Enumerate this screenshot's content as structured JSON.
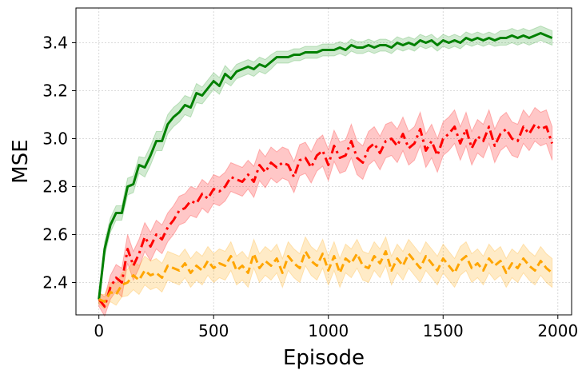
{
  "chart_data": {
    "type": "line",
    "title": "",
    "xlabel": "Episode",
    "ylabel": "MSE",
    "xlim": [
      -100,
      2060
    ],
    "ylim": [
      2.265,
      3.545
    ],
    "x_ticks": [
      0,
      500,
      1000,
      1500,
      2000
    ],
    "y_ticks": [
      2.4,
      2.6,
      2.8,
      3.0,
      3.2,
      3.4
    ],
    "x_tick_labels": [
      "0",
      "500",
      "1000",
      "1500",
      "2000"
    ],
    "y_tick_labels": [
      "2.4",
      "2.6",
      "2.8",
      "3.0",
      "3.2",
      "3.4"
    ],
    "grid": true,
    "legend": "none",
    "series": [
      {
        "color": "#008000",
        "fill": "#2ca02c",
        "linestyle": "solid",
        "x": [
          0,
          25,
          50,
          75,
          100,
          125,
          150,
          175,
          200,
          225,
          250,
          275,
          300,
          325,
          350,
          375,
          400,
          425,
          450,
          475,
          500,
          525,
          550,
          575,
          600,
          625,
          650,
          675,
          700,
          725,
          750,
          775,
          800,
          825,
          850,
          875,
          900,
          925,
          950,
          975,
          1000,
          1025,
          1050,
          1075,
          1100,
          1125,
          1150,
          1175,
          1200,
          1225,
          1250,
          1275,
          1300,
          1325,
          1350,
          1375,
          1400,
          1425,
          1450,
          1475,
          1500,
          1525,
          1550,
          1575,
          1600,
          1625,
          1650,
          1675,
          1700,
          1725,
          1750,
          1775,
          1800,
          1825,
          1850,
          1875,
          1900,
          1925,
          1950,
          1975
        ],
        "mean": [
          2.33,
          2.54,
          2.64,
          2.69,
          2.69,
          2.8,
          2.81,
          2.89,
          2.88,
          2.93,
          2.99,
          2.99,
          3.06,
          3.09,
          3.11,
          3.14,
          3.13,
          3.19,
          3.18,
          3.21,
          3.24,
          3.22,
          3.27,
          3.25,
          3.28,
          3.29,
          3.3,
          3.29,
          3.31,
          3.3,
          3.32,
          3.34,
          3.34,
          3.34,
          3.35,
          3.35,
          3.36,
          3.36,
          3.36,
          3.37,
          3.37,
          3.37,
          3.38,
          3.37,
          3.39,
          3.38,
          3.38,
          3.39,
          3.38,
          3.39,
          3.39,
          3.38,
          3.4,
          3.39,
          3.4,
          3.39,
          3.41,
          3.4,
          3.41,
          3.39,
          3.41,
          3.4,
          3.41,
          3.4,
          3.42,
          3.41,
          3.42,
          3.41,
          3.42,
          3.41,
          3.42,
          3.42,
          3.43,
          3.42,
          3.43,
          3.42,
          3.43,
          3.44,
          3.43,
          3.42
        ],
        "band": [
          0.02,
          0.03,
          0.03,
          0.03,
          0.03,
          0.035,
          0.035,
          0.035,
          0.04,
          0.04,
          0.04,
          0.04,
          0.04,
          0.04,
          0.04,
          0.04,
          0.04,
          0.04,
          0.035,
          0.035,
          0.035,
          0.035,
          0.035,
          0.03,
          0.03,
          0.03,
          0.03,
          0.03,
          0.03,
          0.03,
          0.03,
          0.025,
          0.025,
          0.025,
          0.025,
          0.025,
          0.025,
          0.025,
          0.025,
          0.025,
          0.025,
          0.025,
          0.025,
          0.025,
          0.025,
          0.025,
          0.025,
          0.025,
          0.025,
          0.025,
          0.025,
          0.025,
          0.025,
          0.025,
          0.025,
          0.025,
          0.025,
          0.025,
          0.025,
          0.025,
          0.025,
          0.025,
          0.025,
          0.025,
          0.025,
          0.025,
          0.025,
          0.025,
          0.025,
          0.025,
          0.03,
          0.03,
          0.03,
          0.03,
          0.03,
          0.03,
          0.03,
          0.03,
          0.03,
          0.03
        ]
      },
      {
        "color": "#ff0000",
        "fill": "#ff0000",
        "linestyle": "dashdot",
        "x": [
          0,
          25,
          50,
          75,
          100,
          125,
          150,
          175,
          200,
          225,
          250,
          275,
          300,
          325,
          350,
          375,
          400,
          425,
          450,
          475,
          500,
          525,
          550,
          575,
          600,
          625,
          650,
          675,
          700,
          725,
          750,
          775,
          800,
          825,
          850,
          875,
          900,
          925,
          950,
          975,
          1000,
          1025,
          1050,
          1075,
          1100,
          1125,
          1150,
          1175,
          1200,
          1225,
          1250,
          1275,
          1300,
          1325,
          1350,
          1375,
          1400,
          1425,
          1450,
          1475,
          1500,
          1525,
          1550,
          1575,
          1600,
          1625,
          1650,
          1675,
          1700,
          1725,
          1750,
          1775,
          1800,
          1825,
          1850,
          1875,
          1900,
          1925,
          1950,
          1975
        ],
        "mean": [
          2.33,
          2.3,
          2.38,
          2.42,
          2.4,
          2.54,
          2.47,
          2.52,
          2.59,
          2.55,
          2.6,
          2.58,
          2.63,
          2.66,
          2.7,
          2.71,
          2.74,
          2.73,
          2.77,
          2.75,
          2.79,
          2.78,
          2.8,
          2.84,
          2.83,
          2.82,
          2.85,
          2.82,
          2.89,
          2.86,
          2.9,
          2.88,
          2.9,
          2.89,
          2.84,
          2.91,
          2.92,
          2.88,
          2.93,
          2.95,
          2.89,
          2.97,
          2.92,
          2.93,
          2.99,
          2.92,
          2.9,
          2.96,
          2.98,
          2.94,
          2.99,
          3.0,
          2.97,
          3.02,
          2.96,
          2.98,
          3.04,
          2.95,
          2.99,
          2.93,
          3.0,
          3.02,
          3.05,
          2.98,
          3.04,
          2.96,
          3.01,
          2.99,
          3.05,
          2.97,
          3.02,
          3.04,
          3.0,
          2.99,
          3.05,
          3.02,
          3.06,
          3.04,
          3.05,
          2.98
        ],
        "band": [
          0.03,
          0.04,
          0.05,
          0.055,
          0.06,
          0.06,
          0.06,
          0.06,
          0.06,
          0.06,
          0.06,
          0.06,
          0.06,
          0.06,
          0.06,
          0.06,
          0.06,
          0.06,
          0.06,
          0.06,
          0.06,
          0.06,
          0.06,
          0.06,
          0.06,
          0.06,
          0.06,
          0.065,
          0.065,
          0.065,
          0.065,
          0.065,
          0.065,
          0.065,
          0.065,
          0.065,
          0.065,
          0.065,
          0.065,
          0.065,
          0.065,
          0.065,
          0.065,
          0.065,
          0.07,
          0.07,
          0.07,
          0.07,
          0.07,
          0.07,
          0.07,
          0.07,
          0.07,
          0.07,
          0.07,
          0.07,
          0.07,
          0.07,
          0.07,
          0.07,
          0.07,
          0.07,
          0.07,
          0.07,
          0.07,
          0.07,
          0.07,
          0.07,
          0.07,
          0.07,
          0.07,
          0.07,
          0.07,
          0.07,
          0.07,
          0.07,
          0.07,
          0.07,
          0.07,
          0.07
        ]
      },
      {
        "color": "#ffa500",
        "fill": "#ffa500",
        "linestyle": "dashed",
        "x": [
          0,
          25,
          50,
          75,
          100,
          125,
          150,
          175,
          200,
          225,
          250,
          275,
          300,
          325,
          350,
          375,
          400,
          425,
          450,
          475,
          500,
          525,
          550,
          575,
          600,
          625,
          650,
          675,
          700,
          725,
          750,
          775,
          800,
          825,
          850,
          875,
          900,
          925,
          950,
          975,
          1000,
          1025,
          1050,
          1075,
          1100,
          1125,
          1150,
          1175,
          1200,
          1225,
          1250,
          1275,
          1300,
          1325,
          1350,
          1375,
          1400,
          1425,
          1450,
          1475,
          1500,
          1525,
          1550,
          1575,
          1600,
          1625,
          1650,
          1675,
          1700,
          1725,
          1750,
          1775,
          1800,
          1825,
          1850,
          1875,
          1900,
          1925,
          1950,
          1975
        ],
        "mean": [
          2.33,
          2.32,
          2.36,
          2.35,
          2.39,
          2.4,
          2.43,
          2.41,
          2.45,
          2.43,
          2.44,
          2.42,
          2.47,
          2.46,
          2.45,
          2.48,
          2.44,
          2.47,
          2.45,
          2.49,
          2.46,
          2.48,
          2.47,
          2.51,
          2.45,
          2.47,
          2.44,
          2.52,
          2.46,
          2.49,
          2.47,
          2.5,
          2.44,
          2.51,
          2.48,
          2.46,
          2.53,
          2.49,
          2.47,
          2.52,
          2.45,
          2.51,
          2.44,
          2.5,
          2.48,
          2.52,
          2.47,
          2.46,
          2.51,
          2.48,
          2.53,
          2.45,
          2.5,
          2.47,
          2.52,
          2.49,
          2.46,
          2.51,
          2.48,
          2.45,
          2.5,
          2.47,
          2.44,
          2.49,
          2.51,
          2.46,
          2.48,
          2.45,
          2.5,
          2.47,
          2.49,
          2.44,
          2.48,
          2.46,
          2.5,
          2.47,
          2.45,
          2.49,
          2.46,
          2.44
        ],
        "band": [
          0.02,
          0.03,
          0.04,
          0.045,
          0.05,
          0.055,
          0.06,
          0.06,
          0.06,
          0.06,
          0.06,
          0.06,
          0.06,
          0.06,
          0.06,
          0.06,
          0.06,
          0.06,
          0.06,
          0.06,
          0.06,
          0.06,
          0.06,
          0.06,
          0.06,
          0.06,
          0.06,
          0.06,
          0.06,
          0.06,
          0.06,
          0.06,
          0.06,
          0.06,
          0.06,
          0.06,
          0.06,
          0.06,
          0.06,
          0.06,
          0.06,
          0.06,
          0.06,
          0.06,
          0.06,
          0.06,
          0.06,
          0.06,
          0.06,
          0.06,
          0.06,
          0.06,
          0.06,
          0.06,
          0.06,
          0.06,
          0.06,
          0.06,
          0.06,
          0.06,
          0.06,
          0.06,
          0.06,
          0.06,
          0.06,
          0.06,
          0.06,
          0.06,
          0.06,
          0.06,
          0.06,
          0.06,
          0.06,
          0.06,
          0.06,
          0.06,
          0.06,
          0.06,
          0.06,
          0.06
        ]
      }
    ]
  }
}
